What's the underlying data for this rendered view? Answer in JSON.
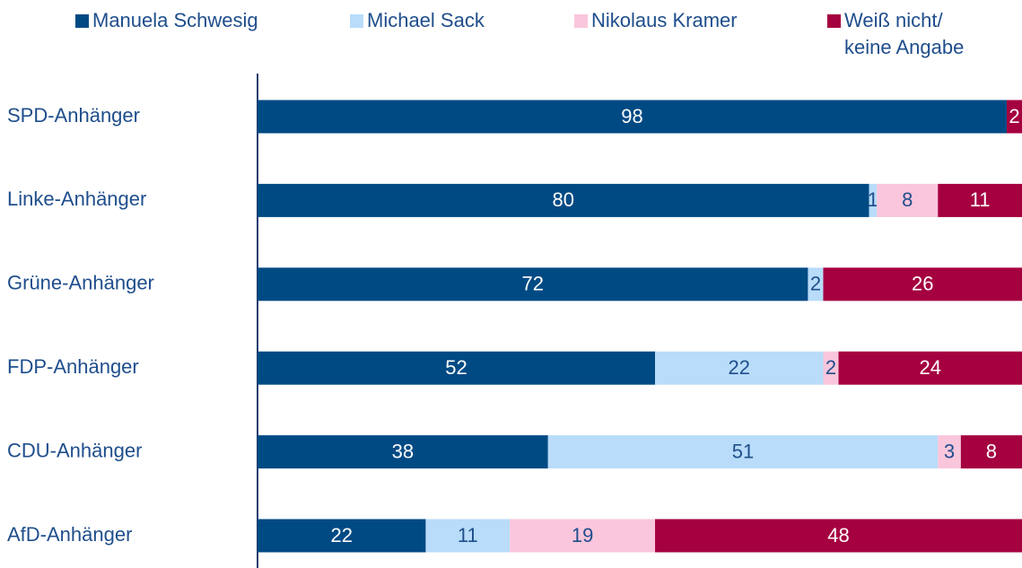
{
  "chart_data": {
    "type": "stacked-barh",
    "categories": [
      "SPD-Anhänger",
      "Linke-Anhänger",
      "Grüne-Anhänger",
      "FDP-Anhänger",
      "CDU-Anhänger",
      "AfD-Anhänger"
    ],
    "series": [
      {
        "name": "Manuela Schwesig",
        "color": "#004a84",
        "values": [
          98,
          80,
          72,
          52,
          38,
          22
        ]
      },
      {
        "name": "Michael Sack",
        "color": "#b8dcf9",
        "values": [
          null,
          1,
          2,
          22,
          51,
          11
        ]
      },
      {
        "name": "Nikolaus Kramer",
        "color": "#f9c6dc",
        "values": [
          null,
          8,
          null,
          2,
          3,
          19
        ]
      },
      {
        "name": "Weiß nicht/ keine Angabe",
        "color": "#a50040",
        "values": [
          2,
          11,
          26,
          24,
          8,
          48
        ]
      }
    ],
    "xlim": [
      0,
      100
    ],
    "legend": "top"
  }
}
